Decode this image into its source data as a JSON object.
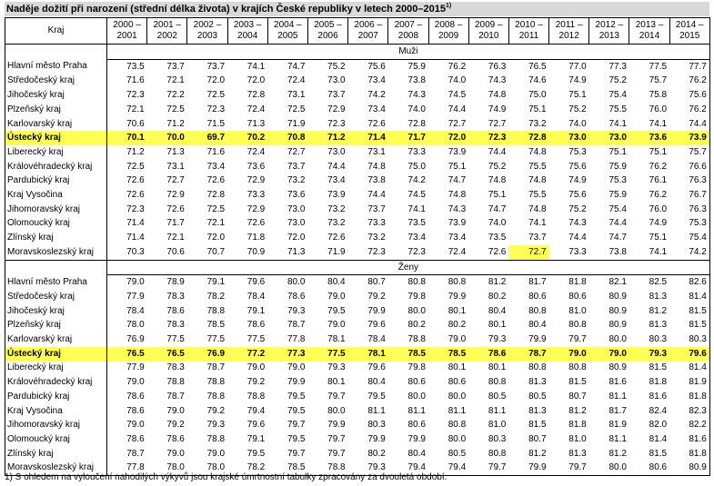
{
  "title": "Naděje dožití při narození (střední délka života) v krajích České republiky v letech 2000–2015",
  "title_sup": "1)",
  "header": {
    "kraj": "Kraj",
    "periods": [
      [
        "2000 –",
        "2001"
      ],
      [
        "2001 –",
        "2002"
      ],
      [
        "2002 –",
        "2003"
      ],
      [
        "2003 –",
        "2004"
      ],
      [
        "2004 –",
        "2005"
      ],
      [
        "2005 –",
        "2006"
      ],
      [
        "2006 –",
        "2007"
      ],
      [
        "2007 –",
        "2008"
      ],
      [
        "2008 –",
        "2009"
      ],
      [
        "2009 –",
        "2010"
      ],
      [
        "2010 –",
        "2011"
      ],
      [
        "2011 –",
        "2012"
      ],
      [
        "2012 –",
        "2013"
      ],
      [
        "2013 –",
        "2014"
      ],
      [
        "2014 –",
        "2015"
      ]
    ]
  },
  "sections": [
    {
      "label": "Muži",
      "rows": [
        {
          "region": "Hlavní město Praha",
          "values": [
            "73.5",
            "73.7",
            "73.7",
            "74.1",
            "74.7",
            "75.2",
            "75.6",
            "75.9",
            "76.2",
            "76.3",
            "76.5",
            "77.0",
            "77.3",
            "77.5",
            "77.7"
          ]
        },
        {
          "region": "Středočeský kraj",
          "values": [
            "71.6",
            "72.1",
            "72.0",
            "72.0",
            "72.4",
            "73.0",
            "73.4",
            "73.8",
            "74.0",
            "74.3",
            "74.6",
            "74.9",
            "75.2",
            "75.7",
            "76.2"
          ]
        },
        {
          "region": "Jihočeský kraj",
          "values": [
            "72.3",
            "72.2",
            "72.5",
            "72.8",
            "73.1",
            "73.7",
            "74.2",
            "74.3",
            "74.5",
            "74.8",
            "75.0",
            "75.1",
            "75.4",
            "75.8",
            "75.6"
          ]
        },
        {
          "region": "Plzeňský kraj",
          "values": [
            "72.1",
            "72.5",
            "72.3",
            "72.4",
            "72.5",
            "72.9",
            "73.4",
            "74.0",
            "74.4",
            "74.9",
            "75.1",
            "75.2",
            "75.5",
            "76.0",
            "76.2"
          ]
        },
        {
          "region": "Karlovarský kraj",
          "values": [
            "70.6",
            "71.2",
            "71.5",
            "71.3",
            "71.9",
            "72.3",
            "72.6",
            "72.8",
            "72.7",
            "72.7",
            "73.2",
            "74.0",
            "74.1",
            "74.1",
            "74.4"
          ]
        },
        {
          "region": "Ústecký kraj",
          "highlight": true,
          "values": [
            "70.1",
            "70.0",
            "69.7",
            "70.2",
            "70.8",
            "71.2",
            "71.4",
            "71.7",
            "72.0",
            "72.3",
            "72.8",
            "73.0",
            "73.0",
            "73.6",
            "73.9"
          ]
        },
        {
          "region": "Liberecký kraj",
          "values": [
            "71.2",
            "71.3",
            "71.6",
            "72.4",
            "72.7",
            "73.0",
            "73.1",
            "73.3",
            "73.9",
            "74.4",
            "74.8",
            "75.3",
            "75.1",
            "75.1",
            "75.7"
          ]
        },
        {
          "region": "Královéhradecký kraj",
          "values": [
            "72.5",
            "73.1",
            "73.4",
            "73.6",
            "73.7",
            "74.4",
            "74.8",
            "75.0",
            "75.1",
            "75.2",
            "75.5",
            "75.6",
            "75.9",
            "76.2",
            "76.6"
          ]
        },
        {
          "region": "Pardubický kraj",
          "values": [
            "72.6",
            "72.7",
            "72.6",
            "72.9",
            "73.2",
            "73.4",
            "73.8",
            "74.2",
            "74.7",
            "74.8",
            "74.8",
            "74.9",
            "75.3",
            "76.1",
            "76.3"
          ]
        },
        {
          "region": "Kraj Vysočina",
          "values": [
            "72.6",
            "72.9",
            "72.8",
            "73.3",
            "73.6",
            "73.9",
            "74.4",
            "74.5",
            "74.8",
            "75.1",
            "75.5",
            "75.6",
            "75.9",
            "76.2",
            "76.7"
          ]
        },
        {
          "region": "Jihomoravský kraj",
          "values": [
            "72.3",
            "72.6",
            "72.5",
            "72.9",
            "73.0",
            "73.2",
            "73.7",
            "74.1",
            "74.3",
            "74.7",
            "74.8",
            "75.2",
            "75.4",
            "76.0",
            "76.3"
          ]
        },
        {
          "region": "Olomoucký kraj",
          "values": [
            "71.4",
            "71.7",
            "72.1",
            "72.6",
            "73.0",
            "73.2",
            "73.3",
            "73.5",
            "73.9",
            "74.0",
            "74.1",
            "74.3",
            "74.4",
            "74.9",
            "75.3"
          ]
        },
        {
          "region": "Zlínský kraj",
          "values": [
            "71.4",
            "72.1",
            "72.0",
            "71.8",
            "72.0",
            "72.6",
            "73.2",
            "73.4",
            "73.4",
            "73.5",
            "73.7",
            "74.4",
            "74.7",
            "75.1",
            "75.4"
          ]
        },
        {
          "region": "Moravskoslezský kraj",
          "highlight_cell": 10,
          "values": [
            "70.3",
            "70.6",
            "70.7",
            "70.9",
            "71.3",
            "71.9",
            "72.3",
            "72.3",
            "72.4",
            "72.6",
            "72.7",
            "73.3",
            "73.8",
            "74.1",
            "74.2"
          ]
        }
      ]
    },
    {
      "label": "Ženy",
      "rows": [
        {
          "region": "Hlavní město Praha",
          "values": [
            "79.0",
            "78.9",
            "79.1",
            "79.6",
            "80.0",
            "80.4",
            "80.7",
            "80.8",
            "80.8",
            "81.2",
            "81.7",
            "81.8",
            "82.1",
            "82.5",
            "82.6"
          ]
        },
        {
          "region": "Středočeský kraj",
          "values": [
            "77.9",
            "78.3",
            "78.2",
            "78.4",
            "78.6",
            "79.0",
            "79.2",
            "79.8",
            "79.9",
            "80.2",
            "80.6",
            "80.6",
            "80.9",
            "81.3",
            "81.4"
          ]
        },
        {
          "region": "Jihočeský kraj",
          "values": [
            "78.4",
            "78.6",
            "78.8",
            "79.1",
            "79.3",
            "79.5",
            "79.9",
            "80.0",
            "80.1",
            "80.4",
            "80.8",
            "81.0",
            "80.9",
            "81.2",
            "81.5"
          ]
        },
        {
          "region": "Plzeňský kraj",
          "values": [
            "78.0",
            "78.3",
            "78.5",
            "78.6",
            "78.7",
            "79.0",
            "79.6",
            "80.2",
            "80.2",
            "80.1",
            "80.4",
            "80.8",
            "80.9",
            "81.3",
            "81.5"
          ]
        },
        {
          "region": "Karlovarský kraj",
          "values": [
            "76.9",
            "77.5",
            "77.5",
            "77.5",
            "77.8",
            "78.1",
            "78.4",
            "78.8",
            "79.0",
            "79.3",
            "79.9",
            "79.7",
            "80.0",
            "80.3",
            "80.3"
          ]
        },
        {
          "region": "Ústecký kraj",
          "highlight": true,
          "values": [
            "76.5",
            "76.5",
            "76.9",
            "77.2",
            "77.3",
            "77.5",
            "78.1",
            "78.5",
            "78.5",
            "78.6",
            "78.7",
            "79.0",
            "79.0",
            "79.3",
            "79.6"
          ]
        },
        {
          "region": "Liberecký kraj",
          "values": [
            "77.9",
            "78.3",
            "78.7",
            "79.0",
            "79.0",
            "79.3",
            "79.6",
            "79.8",
            "80.1",
            "80.1",
            "80.8",
            "80.8",
            "80.9",
            "81.5",
            "81.4"
          ]
        },
        {
          "region": "Královéhradecký kraj",
          "values": [
            "79.0",
            "78.8",
            "78.8",
            "79.2",
            "79.9",
            "80.1",
            "80.4",
            "80.6",
            "80.6",
            "80.8",
            "81.3",
            "81.5",
            "81.6",
            "81.8",
            "81.9"
          ]
        },
        {
          "region": "Pardubický kraj",
          "values": [
            "78.6",
            "78.7",
            "78.8",
            "78.8",
            "79.5",
            "79.7",
            "79.5",
            "80.0",
            "80.0",
            "80.5",
            "80.5",
            "80.7",
            "81.1",
            "81.6",
            "81.8"
          ]
        },
        {
          "region": "Kraj Vysočina",
          "values": [
            "78.6",
            "79.0",
            "79.2",
            "79.4",
            "79.5",
            "80.0",
            "81.1",
            "81.1",
            "81.1",
            "81.1",
            "81.3",
            "81.2",
            "81.7",
            "82.4",
            "82.3"
          ]
        },
        {
          "region": "Jihomoravský kraj",
          "values": [
            "79.0",
            "79.2",
            "79.3",
            "79.6",
            "79.7",
            "79.9",
            "80.3",
            "80.6",
            "80.8",
            "81.0",
            "81.5",
            "81.8",
            "81.9",
            "82.0",
            "82.2"
          ]
        },
        {
          "region": "Olomoucký kraj",
          "values": [
            "78.6",
            "78.6",
            "78.8",
            "79.1",
            "79.5",
            "79.7",
            "79.9",
            "79.9",
            "80.0",
            "80.3",
            "80.7",
            "81.0",
            "81.1",
            "81.4",
            "81.6"
          ]
        },
        {
          "region": "Zlínský kraj",
          "values": [
            "78.7",
            "79.0",
            "79.0",
            "79.5",
            "79.7",
            "79.7",
            "80.2",
            "80.4",
            "80.5",
            "80.8",
            "81.2",
            "81.3",
            "81.2",
            "81.5",
            "81.8"
          ]
        },
        {
          "region": "Moravskoslezský kraj",
          "values": [
            "77.8",
            "78.0",
            "78.0",
            "78.2",
            "78.5",
            "78.8",
            "79.3",
            "79.4",
            "79.4",
            "79.7",
            "79.9",
            "79.7",
            "80.0",
            "80.6",
            "80.9"
          ]
        }
      ]
    }
  ],
  "footnote": "1) S ohledem na vyloučení nahodilých výkyvů jsou krajské úmrtnostní tabulky zpracovány za dvouletá období.",
  "colors": {
    "highlight": "#ffff55",
    "title_bg": "#d9d9d9"
  }
}
